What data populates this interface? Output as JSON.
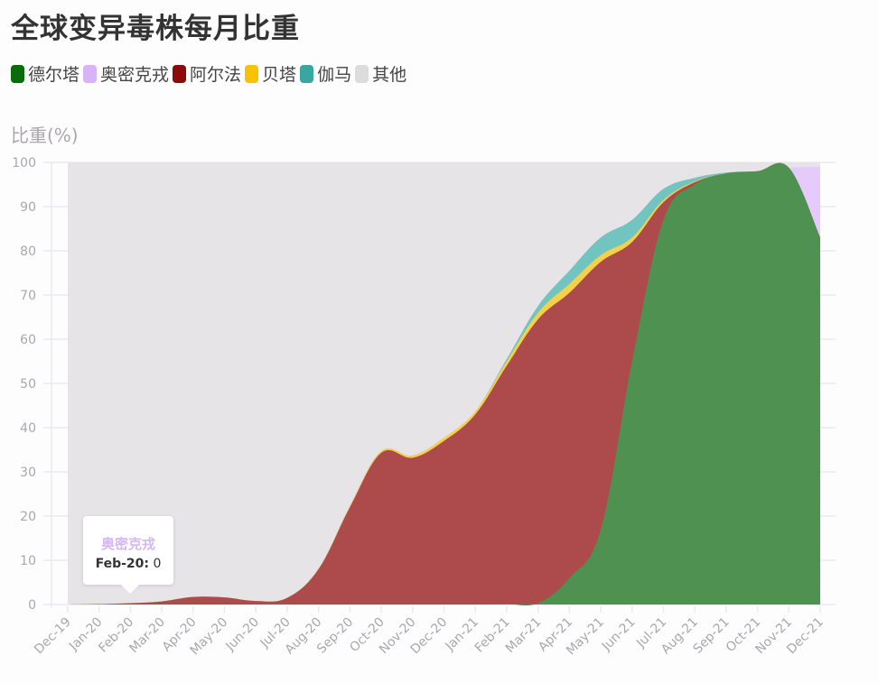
{
  "title": "全球变异毒株每月比重",
  "legend": [
    {
      "label": "德尔塔",
      "color": "#0a6b0a"
    },
    {
      "label": "奥密克戎",
      "color": "#d9b3f7"
    },
    {
      "label": "阿尔法",
      "color": "#8b0a0a"
    },
    {
      "label": "贝塔",
      "color": "#f7c300"
    },
    {
      "label": "伽马",
      "color": "#3aa6a0"
    },
    {
      "label": "其他",
      "color": "#dcdcdc"
    }
  ],
  "y_axis_label": "比重(%)",
  "tooltip": {
    "series": "奥密克戎",
    "category": "Feb-20:",
    "value": "0"
  },
  "chart_data": {
    "type": "area",
    "stacked": true,
    "title": "全球变异毒株每月比重",
    "xlabel": "",
    "ylabel": "比重(%)",
    "ylim": [
      0,
      100
    ],
    "yticks": [
      0,
      10,
      20,
      30,
      40,
      50,
      60,
      70,
      80,
      90,
      100
    ],
    "grid": true,
    "legend_position": "top-left",
    "categories": [
      "Dec-19",
      "Jan-20",
      "Feb-20",
      "Mar-20",
      "Apr-20",
      "May-20",
      "Jun-20",
      "Jul-20",
      "Aug-20",
      "Sep-20",
      "Oct-20",
      "Nov-20",
      "Dec-20",
      "Jan-21",
      "Feb-21",
      "Mar-21",
      "Apr-21",
      "May-21",
      "Jun-21",
      "Jul-21",
      "Aug-21",
      "Sep-21",
      "Oct-21",
      "Nov-21",
      "Dec-21"
    ],
    "series": [
      {
        "name": "德尔塔",
        "color": "#4e9150",
        "values": [
          0,
          0,
          0,
          0,
          0,
          0,
          0,
          0,
          0,
          0,
          0,
          0,
          0,
          0,
          0.1,
          0.3,
          6,
          17,
          55,
          87,
          95,
          97.5,
          98,
          98.8,
          83
        ]
      },
      {
        "name": "阿尔法",
        "color": "#ad4a4b",
        "values": [
          0,
          0.1,
          0.3,
          0.7,
          1.7,
          1.6,
          0.8,
          1.5,
          8,
          22,
          34.3,
          33.2,
          37,
          43,
          53.9,
          64.2,
          64.5,
          60.5,
          27,
          4,
          0.5,
          0,
          0,
          0,
          0
        ]
      },
      {
        "name": "贝塔",
        "color": "#f7d04a",
        "values": [
          0,
          0,
          0,
          0,
          0,
          0,
          0,
          0,
          0.1,
          0.3,
          0.4,
          0.5,
          0.7,
          0.7,
          1,
          1.5,
          2,
          1.5,
          1,
          0.5,
          0.2,
          0,
          0,
          0,
          0
        ]
      },
      {
        "name": "伽马",
        "color": "#72c4c0",
        "values": [
          0,
          0,
          0,
          0,
          0,
          0,
          0,
          0,
          0,
          0,
          0,
          0,
          0,
          0,
          0.5,
          1.5,
          3,
          4,
          4,
          2.5,
          0.8,
          0.2,
          0,
          0,
          0
        ]
      },
      {
        "name": "奥密克戎",
        "color": "#e5cbfb",
        "values": [
          0,
          0,
          0,
          0,
          0,
          0,
          0,
          0,
          0,
          0,
          0,
          0,
          0,
          0,
          0,
          0,
          0,
          0,
          0,
          0,
          0,
          0,
          0,
          0,
          16
        ]
      },
      {
        "name": "其他",
        "color": "#e6e4e7",
        "values": [
          100,
          99.9,
          99.7,
          99.3,
          98.3,
          98.4,
          99.2,
          98.5,
          91.9,
          77.7,
          65.3,
          66.3,
          62.3,
          56.3,
          44.5,
          32.5,
          24.5,
          17,
          13,
          6,
          3.5,
          2.3,
          2,
          1.2,
          1
        ]
      }
    ]
  }
}
